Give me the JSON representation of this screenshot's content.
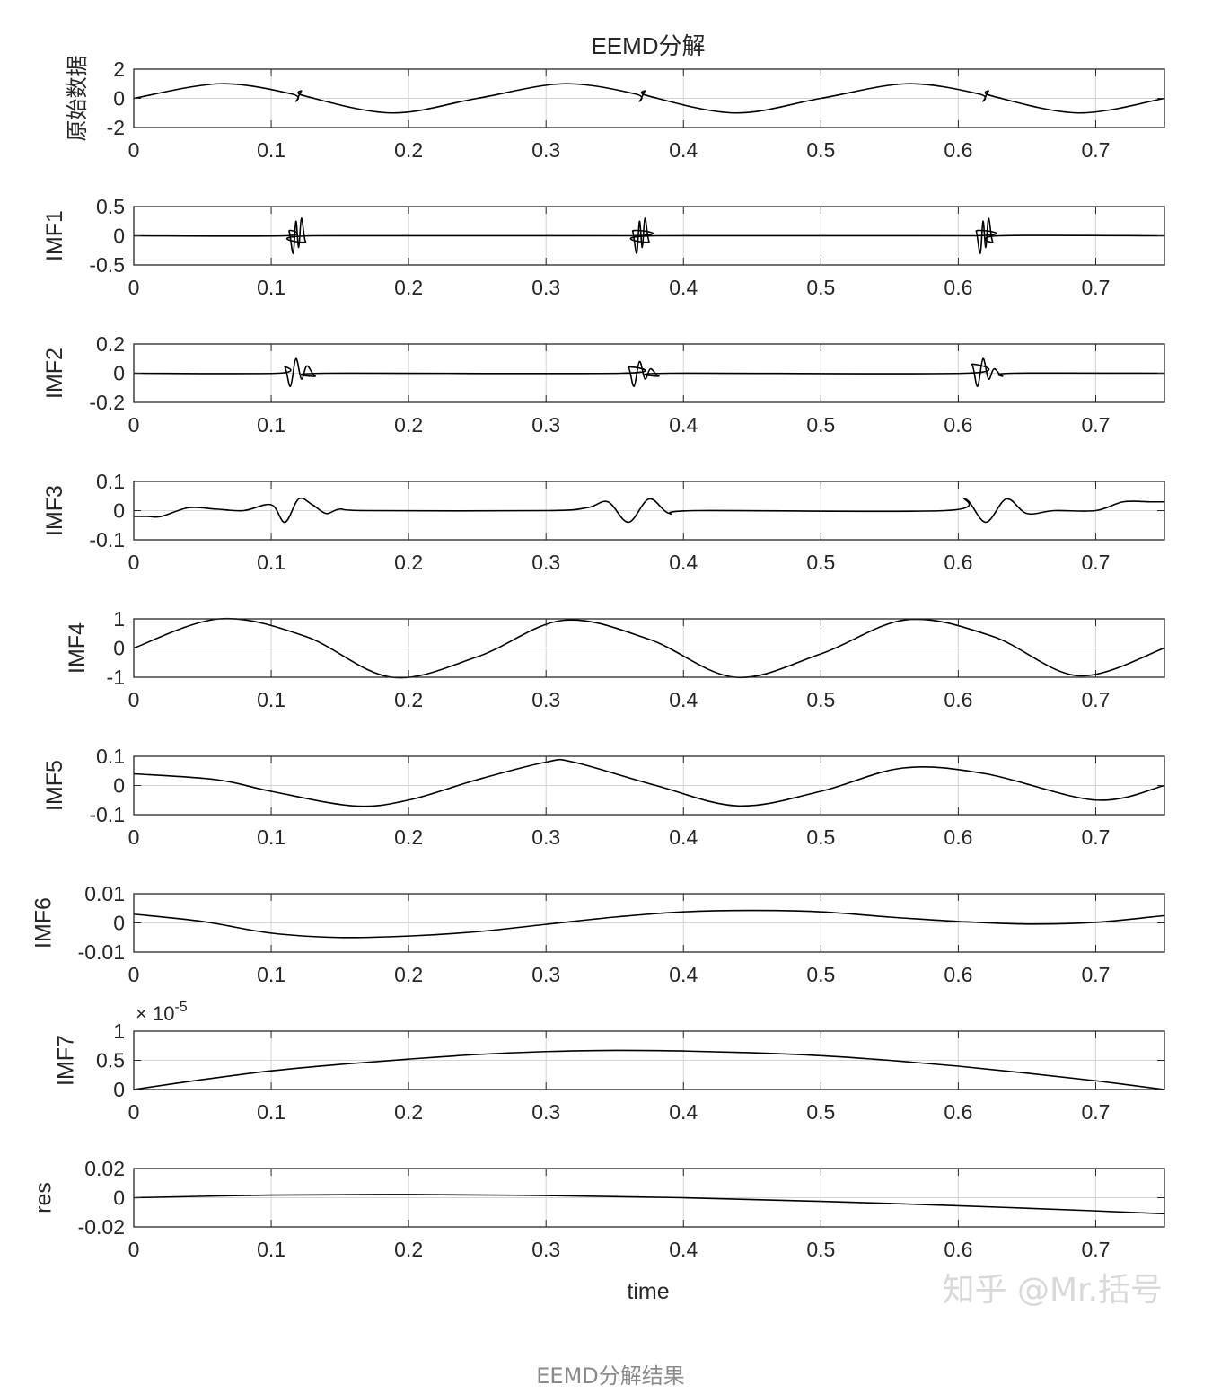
{
  "figure": {
    "title": "EEMD分解",
    "xlabel": "time",
    "watermark": "知乎 @Mr.括号"
  },
  "caption": "EEMD分解结果",
  "chart_data": [
    {
      "type": "line",
      "ylabel": "原始数据",
      "xlim": [
        0,
        0.75
      ],
      "ylim": [
        -2,
        2
      ],
      "yticks": [
        "-2",
        "0",
        "2"
      ],
      "grid": true,
      "x": [
        0,
        0.0625,
        0.115,
        0.118,
        0.122,
        0.125,
        0.1875,
        0.25,
        0.3125,
        0.365,
        0.368,
        0.372,
        0.375,
        0.4375,
        0.5,
        0.5625,
        0.615,
        0.618,
        0.622,
        0.625,
        0.6875,
        0.75
      ],
      "y": [
        0,
        1.0,
        0.3,
        -0.2,
        0.5,
        0.15,
        -1.0,
        0,
        1.0,
        0.3,
        -0.2,
        0.5,
        0.15,
        -1.0,
        0,
        1.0,
        0.3,
        -0.2,
        0.5,
        0.15,
        -1.0,
        0
      ]
    },
    {
      "type": "line",
      "ylabel": "IMF1",
      "xlim": [
        0,
        0.75
      ],
      "ylim": [
        -0.5,
        0.5
      ],
      "yticks": [
        "-0.5",
        "0",
        "0.5"
      ],
      "grid": true,
      "x": [
        0,
        0.11,
        0.113,
        0.116,
        0.118,
        0.12,
        0.122,
        0.125,
        0.13,
        0.36,
        0.363,
        0.366,
        0.368,
        0.37,
        0.372,
        0.375,
        0.38,
        0.61,
        0.613,
        0.616,
        0.618,
        0.62,
        0.622,
        0.625,
        0.63,
        0.75
      ],
      "y": [
        0,
        0,
        0.08,
        -0.3,
        0.25,
        -0.2,
        0.3,
        -0.1,
        0,
        0,
        0.08,
        -0.3,
        0.25,
        -0.2,
        0.3,
        -0.1,
        0,
        0,
        0.08,
        -0.3,
        0.25,
        -0.2,
        0.3,
        -0.1,
        0,
        0
      ]
    },
    {
      "type": "line",
      "ylabel": "IMF2",
      "xlim": [
        0,
        0.75
      ],
      "ylim": [
        -0.2,
        0.2
      ],
      "yticks": [
        "-0.2",
        "0",
        "0.2"
      ],
      "grid": true,
      "x": [
        0,
        0.105,
        0.11,
        0.114,
        0.118,
        0.122,
        0.126,
        0.132,
        0.14,
        0.355,
        0.36,
        0.364,
        0.368,
        0.372,
        0.376,
        0.382,
        0.39,
        0.605,
        0.61,
        0.614,
        0.618,
        0.622,
        0.626,
        0.632,
        0.64,
        0.75
      ],
      "y": [
        0,
        0,
        0.04,
        -0.09,
        0.1,
        -0.04,
        0.05,
        -0.02,
        0,
        0,
        0.04,
        -0.09,
        0.08,
        -0.04,
        0.03,
        -0.02,
        0,
        0,
        0.06,
        -0.09,
        0.1,
        -0.04,
        0.03,
        -0.02,
        0,
        0
      ]
    },
    {
      "type": "line",
      "ylabel": "IMF3",
      "xlim": [
        0,
        0.75
      ],
      "ylim": [
        -0.1,
        0.1
      ],
      "yticks": [
        "-0.1",
        "0",
        "0.1"
      ],
      "grid": true,
      "x": [
        0,
        0.01,
        0.02,
        0.04,
        0.06,
        0.08,
        0.1,
        0.11,
        0.12,
        0.13,
        0.14,
        0.15,
        0.17,
        0.3,
        0.33,
        0.345,
        0.36,
        0.375,
        0.39,
        0.41,
        0.59,
        0.605,
        0.62,
        0.635,
        0.65,
        0.67,
        0.7,
        0.72,
        0.74,
        0.75
      ],
      "y": [
        -0.02,
        -0.02,
        -0.02,
        0.01,
        0.005,
        0,
        0.02,
        -0.04,
        0.04,
        0.02,
        -0.01,
        0.005,
        0,
        0,
        0.01,
        0.03,
        -0.04,
        0.04,
        -0.01,
        0,
        0,
        0.04,
        -0.04,
        0.04,
        -0.01,
        0,
        0,
        0.03,
        0.03,
        0.03
      ]
    },
    {
      "type": "line",
      "ylabel": "IMF4",
      "xlim": [
        0,
        0.75
      ],
      "ylim": [
        -1,
        1
      ],
      "yticks": [
        "-1",
        "0",
        "1"
      ],
      "grid": true,
      "x": [
        0,
        0.0625,
        0.125,
        0.1875,
        0.25,
        0.3125,
        0.375,
        0.4375,
        0.5,
        0.5625,
        0.625,
        0.6875,
        0.75
      ],
      "y": [
        0,
        1.0,
        0.4,
        -1.0,
        -0.3,
        0.95,
        0.3,
        -1.0,
        -0.2,
        0.97,
        0.4,
        -0.95,
        0
      ]
    },
    {
      "type": "line",
      "ylabel": "IMF5",
      "xlim": [
        0,
        0.75
      ],
      "ylim": [
        -0.1,
        0.1
      ],
      "yticks": [
        "-0.1",
        "0",
        "0.1"
      ],
      "grid": true,
      "x": [
        0,
        0.06,
        0.1,
        0.16,
        0.2,
        0.25,
        0.3,
        0.32,
        0.38,
        0.44,
        0.5,
        0.56,
        0.62,
        0.7,
        0.75
      ],
      "y": [
        0.04,
        0.02,
        -0.02,
        -0.07,
        -0.05,
        0.02,
        0.08,
        0.08,
        0,
        -0.07,
        -0.02,
        0.06,
        0.04,
        -0.05,
        0
      ]
    },
    {
      "type": "line",
      "ylabel": "IMF6",
      "xlim": [
        0,
        0.75
      ],
      "ylim": [
        -0.01,
        0.01
      ],
      "yticks": [
        "-0.01",
        "0",
        "0.01"
      ],
      "grid": true,
      "x": [
        0,
        0.05,
        0.1,
        0.15,
        0.2,
        0.25,
        0.3,
        0.35,
        0.4,
        0.45,
        0.5,
        0.55,
        0.6,
        0.65,
        0.7,
        0.75
      ],
      "y": [
        0.003,
        0.0005,
        -0.0035,
        -0.005,
        -0.0045,
        -0.003,
        -0.0005,
        0.002,
        0.0038,
        0.0043,
        0.0038,
        0.002,
        0.0005,
        -0.0004,
        0.0002,
        0.0025
      ]
    },
    {
      "type": "line",
      "ylabel": "IMF7",
      "xlim": [
        0,
        0.75
      ],
      "ylim": [
        0,
        1
      ],
      "yticks": [
        "0",
        "0.5",
        "1"
      ],
      "exponent_base": "× 10",
      "exponent_power": "-5",
      "grid": true,
      "x": [
        0,
        0.05,
        0.1,
        0.15,
        0.2,
        0.25,
        0.3,
        0.35,
        0.4,
        0.45,
        0.5,
        0.55,
        0.6,
        0.65,
        0.7,
        0.75
      ],
      "y": [
        0,
        0.17,
        0.32,
        0.43,
        0.52,
        0.6,
        0.65,
        0.67,
        0.66,
        0.63,
        0.58,
        0.5,
        0.4,
        0.28,
        0.15,
        0
      ]
    },
    {
      "type": "line",
      "ylabel": "res",
      "xlim": [
        0,
        0.75
      ],
      "ylim": [
        -0.02,
        0.02
      ],
      "yticks": [
        "-0.02",
        "0",
        "0.02"
      ],
      "grid": true,
      "x": [
        0,
        0.1,
        0.2,
        0.3,
        0.4,
        0.5,
        0.6,
        0.7,
        0.75
      ],
      "y": [
        0,
        0.0018,
        0.0022,
        0.0015,
        0,
        -0.0025,
        -0.0055,
        -0.009,
        -0.011
      ]
    }
  ],
  "x_tick_labels": [
    "0",
    "0.1",
    "0.2",
    "0.3",
    "0.4",
    "0.5",
    "0.6",
    "0.7"
  ],
  "x_tick_values": [
    0,
    0.1,
    0.2,
    0.3,
    0.4,
    0.5,
    0.6,
    0.7
  ],
  "colors": {
    "line": "#000000",
    "axes": "#262626",
    "grid": "#d4d4d4"
  }
}
